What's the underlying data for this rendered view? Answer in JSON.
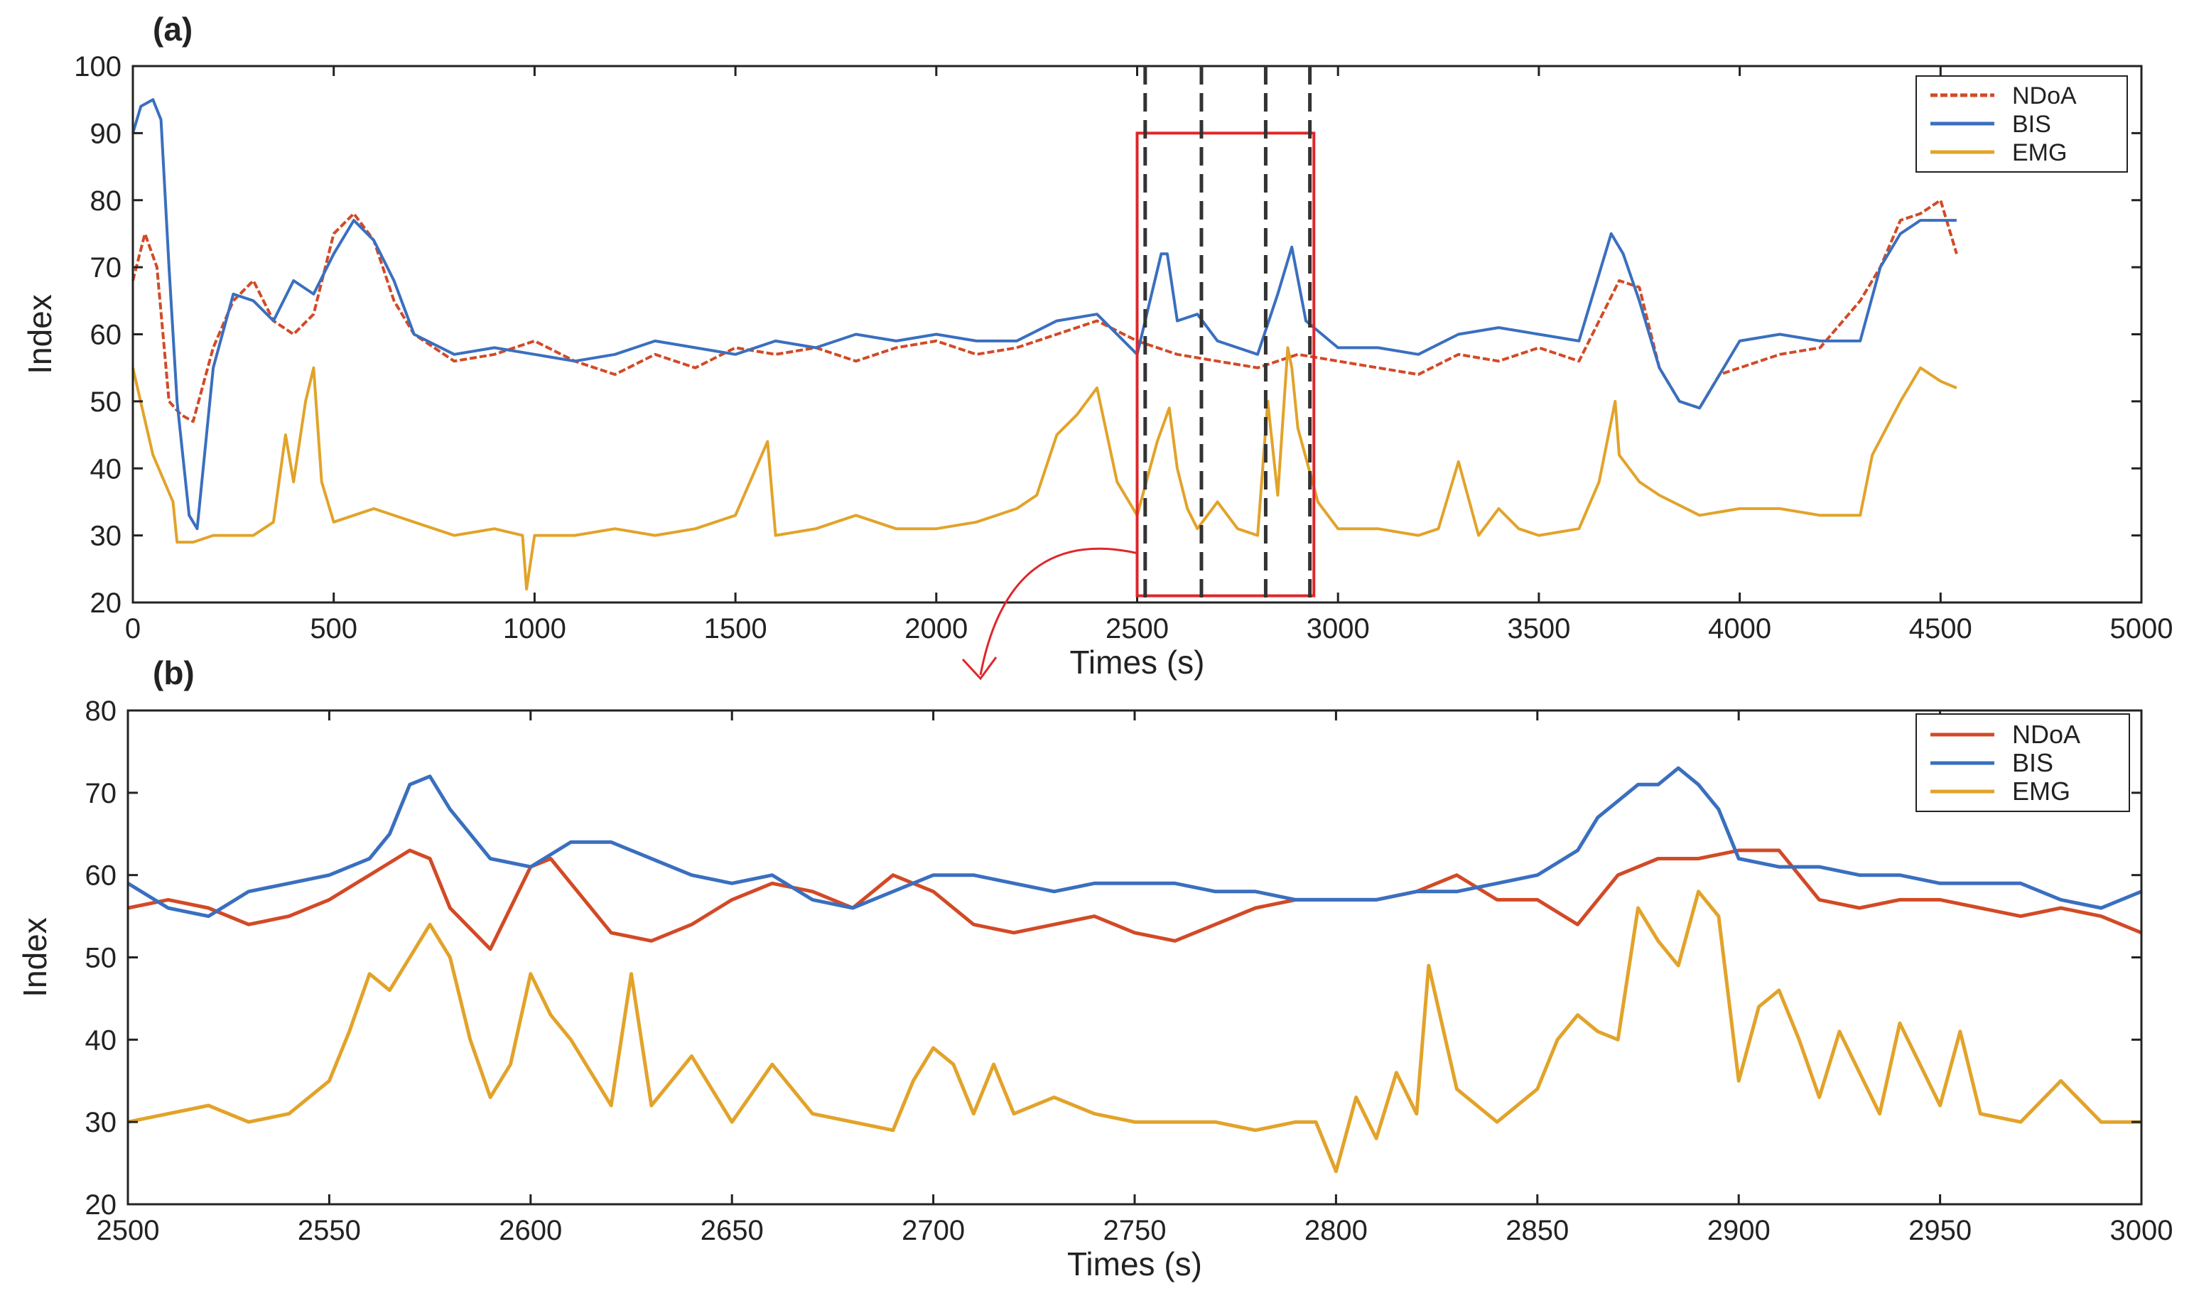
{
  "colors": {
    "ndoa": "#d24a26",
    "bis": "#3a6fbf",
    "emg": "#e2a32a",
    "highlight": "#e0262a",
    "marker": "#333333",
    "axis": "#222222"
  },
  "chart_data": [
    {
      "panel": "(a)",
      "type": "line",
      "xlabel": "Times (s)",
      "ylabel": "Index",
      "xlim": [
        0,
        5000
      ],
      "ylim": [
        20,
        100
      ],
      "xticks": [
        0,
        500,
        1000,
        1500,
        2000,
        2500,
        3000,
        3500,
        4000,
        4500,
        5000
      ],
      "yticks": [
        20,
        30,
        40,
        50,
        60,
        70,
        80,
        90,
        100
      ],
      "legend": [
        "NDoA",
        "BIS",
        "EMG"
      ],
      "legend_position": "top-right",
      "highlight_box": {
        "x": [
          2500,
          2940
        ],
        "y": [
          21,
          90
        ]
      },
      "vertical_markers": [
        2520,
        2660,
        2820,
        2930
      ],
      "series": [
        {
          "name": "NDoA",
          "style": "dashed",
          "x": [
            0,
            30,
            60,
            90,
            120,
            150,
            200,
            250,
            300,
            350,
            400,
            450,
            500,
            550,
            600,
            650,
            700,
            800,
            900,
            1000,
            1100,
            1200,
            1300,
            1400,
            1500,
            1600,
            1700,
            1800,
            1900,
            2000,
            2100,
            2200,
            2300,
            2400,
            2500,
            2600,
            2700,
            2800,
            2900,
            3000,
            3100,
            3200,
            3300,
            3400,
            3500,
            3600,
            3700,
            3750,
            3800,
            3850,
            3900,
            3950,
            4000,
            4100,
            4200,
            4300,
            4350,
            4400,
            4450,
            4500,
            4540
          ],
          "y": [
            68,
            75,
            70,
            50,
            48,
            47,
            58,
            65,
            68,
            62,
            60,
            63,
            75,
            78,
            74,
            65,
            60,
            56,
            57,
            59,
            56,
            54,
            57,
            55,
            58,
            57,
            58,
            56,
            58,
            59,
            57,
            58,
            60,
            62,
            59,
            57,
            56,
            55,
            57,
            56,
            55,
            54,
            57,
            56,
            58,
            56,
            68,
            67,
            55,
            50,
            49,
            54,
            55,
            57,
            58,
            65,
            70,
            77,
            78,
            80,
            72
          ]
        },
        {
          "name": "BIS",
          "style": "solid",
          "x": [
            0,
            20,
            50,
            70,
            90,
            110,
            140,
            160,
            200,
            250,
            300,
            350,
            400,
            450,
            500,
            550,
            600,
            650,
            700,
            800,
            900,
            1000,
            1100,
            1200,
            1300,
            1400,
            1500,
            1600,
            1700,
            1800,
            1900,
            2000,
            2100,
            2200,
            2300,
            2400,
            2500,
            2560,
            2575,
            2600,
            2650,
            2700,
            2800,
            2850,
            2885,
            2920,
            3000,
            3100,
            3200,
            3300,
            3400,
            3500,
            3600,
            3680,
            3710,
            3750,
            3800,
            3850,
            3900,
            4000,
            4100,
            4200,
            4300,
            4350,
            4400,
            4450,
            4500,
            4540
          ],
          "y": [
            90,
            94,
            95,
            92,
            70,
            50,
            33,
            31,
            55,
            66,
            65,
            62,
            68,
            66,
            72,
            77,
            74,
            68,
            60,
            57,
            58,
            57,
            56,
            57,
            59,
            58,
            57,
            59,
            58,
            60,
            59,
            60,
            59,
            59,
            62,
            63,
            57,
            72,
            72,
            62,
            63,
            59,
            57,
            66,
            73,
            62,
            58,
            58,
            57,
            60,
            61,
            60,
            59,
            75,
            72,
            65,
            55,
            50,
            49,
            59,
            60,
            59,
            59,
            70,
            75,
            77,
            77,
            77
          ]
        },
        {
          "name": "EMG",
          "style": "solid",
          "x": [
            0,
            50,
            100,
            110,
            150,
            200,
            300,
            350,
            380,
            400,
            430,
            450,
            470,
            500,
            550,
            600,
            700,
            800,
            900,
            970,
            980,
            1000,
            1100,
            1200,
            1300,
            1400,
            1500,
            1580,
            1600,
            1700,
            1800,
            1900,
            2000,
            2100,
            2200,
            2250,
            2300,
            2350,
            2400,
            2450,
            2500,
            2550,
            2580,
            2600,
            2625,
            2650,
            2700,
            2750,
            2800,
            2825,
            2850,
            2875,
            2885,
            2900,
            2950,
            3000,
            3100,
            3200,
            3250,
            3300,
            3350,
            3400,
            3450,
            3500,
            3600,
            3650,
            3690,
            3700,
            3750,
            3800,
            3900,
            4000,
            4100,
            4200,
            4300,
            4330,
            4400,
            4450,
            4500,
            4540
          ],
          "y": [
            55,
            42,
            35,
            29,
            29,
            30,
            30,
            32,
            45,
            38,
            50,
            55,
            38,
            32,
            33,
            34,
            32,
            30,
            31,
            30,
            22,
            30,
            30,
            31,
            30,
            31,
            33,
            44,
            30,
            31,
            33,
            31,
            31,
            32,
            34,
            36,
            45,
            48,
            52,
            38,
            33,
            44,
            49,
            40,
            34,
            31,
            35,
            31,
            30,
            50,
            36,
            58,
            55,
            46,
            35,
            31,
            31,
            30,
            31,
            41,
            30,
            34,
            31,
            30,
            31,
            38,
            50,
            42,
            38,
            36,
            33,
            34,
            34,
            33,
            33,
            42,
            50,
            55,
            53,
            52
          ]
        }
      ]
    },
    {
      "panel": "(b)",
      "type": "line",
      "xlabel": "Times (s)",
      "ylabel": "Index",
      "xlim": [
        2500,
        3000
      ],
      "ylim": [
        20,
        80
      ],
      "xticks": [
        2500,
        2550,
        2600,
        2650,
        2700,
        2750,
        2800,
        2850,
        2900,
        2950,
        3000
      ],
      "yticks": [
        20,
        30,
        40,
        50,
        60,
        70,
        80
      ],
      "legend": [
        "NDoA",
        "BIS",
        "EMG"
      ],
      "legend_position": "top-right",
      "series": [
        {
          "name": "NDoA",
          "x": [
            2500,
            2510,
            2520,
            2530,
            2540,
            2550,
            2560,
            2570,
            2575,
            2580,
            2590,
            2600,
            2605,
            2610,
            2620,
            2630,
            2640,
            2650,
            2660,
            2670,
            2680,
            2690,
            2700,
            2710,
            2720,
            2730,
            2740,
            2750,
            2760,
            2770,
            2780,
            2790,
            2800,
            2810,
            2820,
            2830,
            2840,
            2850,
            2860,
            2870,
            2880,
            2890,
            2900,
            2910,
            2920,
            2930,
            2940,
            2950,
            2960,
            2970,
            2980,
            2990,
            3000
          ],
          "y": [
            56,
            57,
            56,
            54,
            55,
            57,
            60,
            63,
            62,
            56,
            51,
            61,
            62,
            59,
            53,
            52,
            54,
            57,
            59,
            58,
            56,
            60,
            58,
            54,
            53,
            54,
            55,
            53,
            52,
            54,
            56,
            57,
            57,
            57,
            58,
            60,
            57,
            57,
            54,
            60,
            62,
            62,
            63,
            63,
            57,
            56,
            57,
            57,
            56,
            55,
            56,
            55,
            53
          ]
        },
        {
          "name": "BIS",
          "x": [
            2500,
            2510,
            2520,
            2530,
            2540,
            2550,
            2555,
            2560,
            2565,
            2570,
            2575,
            2580,
            2590,
            2600,
            2610,
            2620,
            2630,
            2640,
            2650,
            2660,
            2670,
            2680,
            2690,
            2700,
            2710,
            2720,
            2730,
            2740,
            2750,
            2760,
            2770,
            2780,
            2790,
            2800,
            2810,
            2820,
            2830,
            2840,
            2850,
            2860,
            2865,
            2870,
            2875,
            2880,
            2885,
            2890,
            2895,
            2900,
            2910,
            2920,
            2930,
            2940,
            2950,
            2960,
            2970,
            2980,
            2990,
            3000
          ],
          "y": [
            59,
            56,
            55,
            58,
            59,
            60,
            61,
            62,
            65,
            71,
            72,
            68,
            62,
            61,
            64,
            64,
            62,
            60,
            59,
            60,
            57,
            56,
            58,
            60,
            60,
            59,
            58,
            59,
            59,
            59,
            58,
            58,
            57,
            57,
            57,
            58,
            58,
            59,
            60,
            63,
            67,
            69,
            71,
            71,
            73,
            71,
            68,
            62,
            61,
            61,
            60,
            60,
            59,
            59,
            59,
            57,
            56,
            58
          ]
        },
        {
          "name": "EMG",
          "x": [
            2500,
            2510,
            2520,
            2530,
            2540,
            2550,
            2555,
            2560,
            2565,
            2570,
            2575,
            2580,
            2585,
            2590,
            2595,
            2600,
            2605,
            2610,
            2620,
            2625,
            2630,
            2640,
            2650,
            2660,
            2670,
            2680,
            2690,
            2695,
            2700,
            2705,
            2710,
            2715,
            2720,
            2730,
            2740,
            2750,
            2760,
            2770,
            2780,
            2790,
            2795,
            2800,
            2805,
            2810,
            2815,
            2820,
            2823,
            2830,
            2840,
            2850,
            2855,
            2860,
            2865,
            2870,
            2875,
            2880,
            2885,
            2890,
            2895,
            2900,
            2905,
            2910,
            2915,
            2920,
            2925,
            2930,
            2935,
            2940,
            2945,
            2950,
            2955,
            2960,
            2970,
            2980,
            2990,
            3000
          ],
          "y": [
            30,
            31,
            32,
            30,
            31,
            35,
            41,
            48,
            46,
            50,
            54,
            50,
            40,
            33,
            37,
            48,
            43,
            40,
            32,
            48,
            32,
            38,
            30,
            37,
            31,
            30,
            29,
            35,
            39,
            37,
            31,
            37,
            31,
            33,
            31,
            30,
            30,
            30,
            29,
            30,
            30,
            24,
            33,
            28,
            36,
            31,
            49,
            34,
            30,
            34,
            40,
            43,
            41,
            40,
            56,
            52,
            49,
            58,
            55,
            35,
            44,
            46,
            40,
            33,
            41,
            36,
            31,
            42,
            37,
            32,
            41,
            31,
            30,
            35,
            30,
            30
          ]
        }
      ]
    }
  ]
}
